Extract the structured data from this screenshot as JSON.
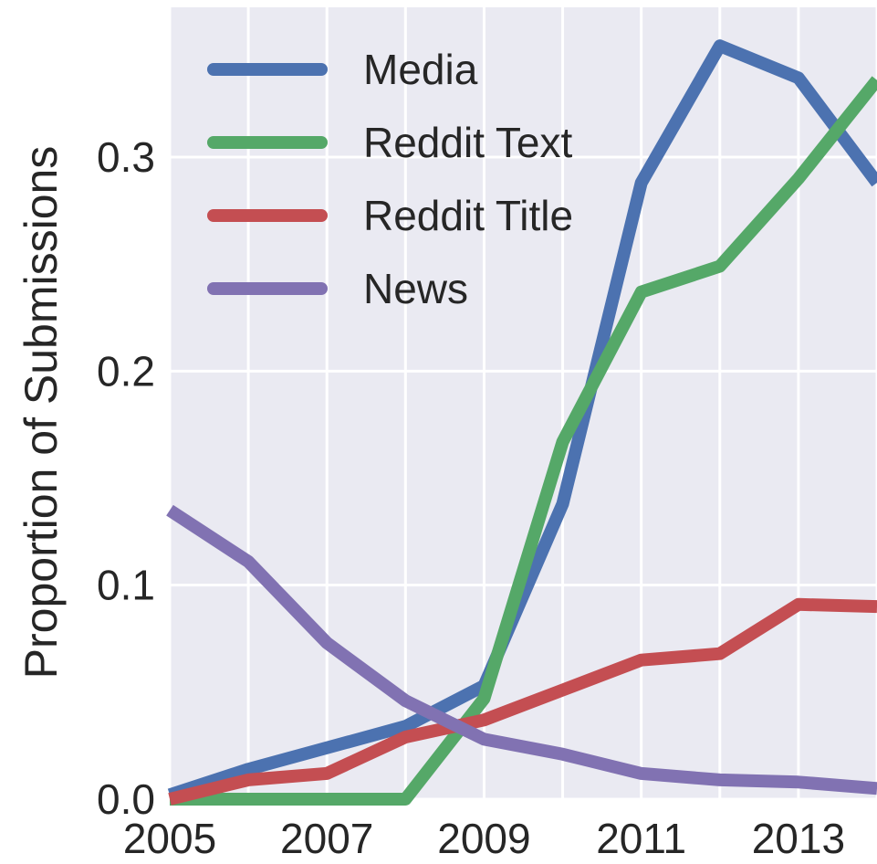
{
  "chart_data": {
    "type": "line",
    "title": "",
    "xlabel": "",
    "ylabel": "Proportion of Submissions",
    "x": [
      2005,
      2006,
      2007,
      2008,
      2009,
      2010,
      2011,
      2012,
      2013,
      2014
    ],
    "xlim": [
      2005,
      2014
    ],
    "ylim": [
      0.0,
      0.37
    ],
    "xticks": [
      2005,
      2007,
      2009,
      2011,
      2013
    ],
    "xtick_labels": [
      "2005",
      "2007",
      "2009",
      "2011",
      "2013"
    ],
    "yticks": [
      0.0,
      0.1,
      0.2,
      0.3
    ],
    "ytick_labels": [
      "0.0",
      "0.1",
      "0.2",
      "0.3"
    ],
    "grid": true,
    "legend_position": "top-left",
    "series": [
      {
        "name": "Media",
        "color": "#4C72B0",
        "values": [
          0.002,
          0.014,
          0.024,
          0.034,
          0.053,
          0.138,
          0.288,
          0.352,
          0.337,
          0.288
        ]
      },
      {
        "name": "Reddit Text",
        "color": "#55A868",
        "values": [
          0.0,
          0.0,
          0.0,
          0.0,
          0.047,
          0.167,
          0.237,
          0.249,
          0.29,
          0.336
        ]
      },
      {
        "name": "Reddit Title",
        "color": "#C44E52",
        "values": [
          0.0,
          0.009,
          0.012,
          0.029,
          0.037,
          0.051,
          0.065,
          0.068,
          0.091,
          0.09
        ]
      },
      {
        "name": "News",
        "color": "#8172B2",
        "values": [
          0.135,
          0.111,
          0.073,
          0.046,
          0.028,
          0.021,
          0.012,
          0.009,
          0.008,
          0.005
        ]
      }
    ]
  }
}
